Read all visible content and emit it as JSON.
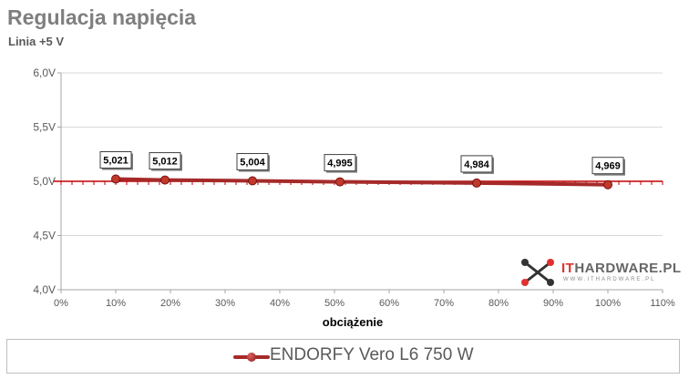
{
  "header": {
    "title": "Regulacja napięcia",
    "subtitle": "Linia +5 V"
  },
  "legend": {
    "label": "ENDORFY Vero L6 750 W"
  },
  "logo": {
    "text_it": "IT",
    "text_rest": "HARDWARE.PL",
    "subtext": "WWW.ITHARDWARE.PL"
  },
  "colors": {
    "series": "#a52a2a",
    "reference_line": "#c00000",
    "axis_text": "#595959",
    "grid": "#d9d9d9"
  },
  "chart_data": {
    "type": "line",
    "title": "Regulacja napięcia",
    "subtitle": "Linia +5 V",
    "xlabel": "obciążenie",
    "ylabel": "",
    "xlim": [
      0,
      110
    ],
    "ylim": [
      4.0,
      6.0
    ],
    "x_ticks": [
      0,
      10,
      20,
      30,
      40,
      50,
      60,
      70,
      80,
      90,
      100,
      110
    ],
    "x_tick_labels": [
      "0%",
      "10%",
      "20%",
      "30%",
      "40%",
      "50%",
      "60%",
      "70%",
      "80%",
      "90%",
      "100%",
      "110%"
    ],
    "y_ticks": [
      4.0,
      4.5,
      5.0,
      5.5,
      6.0
    ],
    "y_tick_labels": [
      "4,0V",
      "4,5V",
      "5,0V",
      "5,5V",
      "6,0V"
    ],
    "reference_line": 5.0,
    "grid": true,
    "legend_position": "bottom",
    "series": [
      {
        "name": "ENDORFY Vero L6 750 W",
        "x": [
          10,
          19,
          35,
          51,
          76,
          100
        ],
        "values": [
          5.021,
          5.012,
          5.004,
          4.995,
          4.984,
          4.969
        ],
        "data_labels": [
          "5,021",
          "5,012",
          "5,004",
          "4,995",
          "4,984",
          "4,969"
        ]
      }
    ]
  }
}
